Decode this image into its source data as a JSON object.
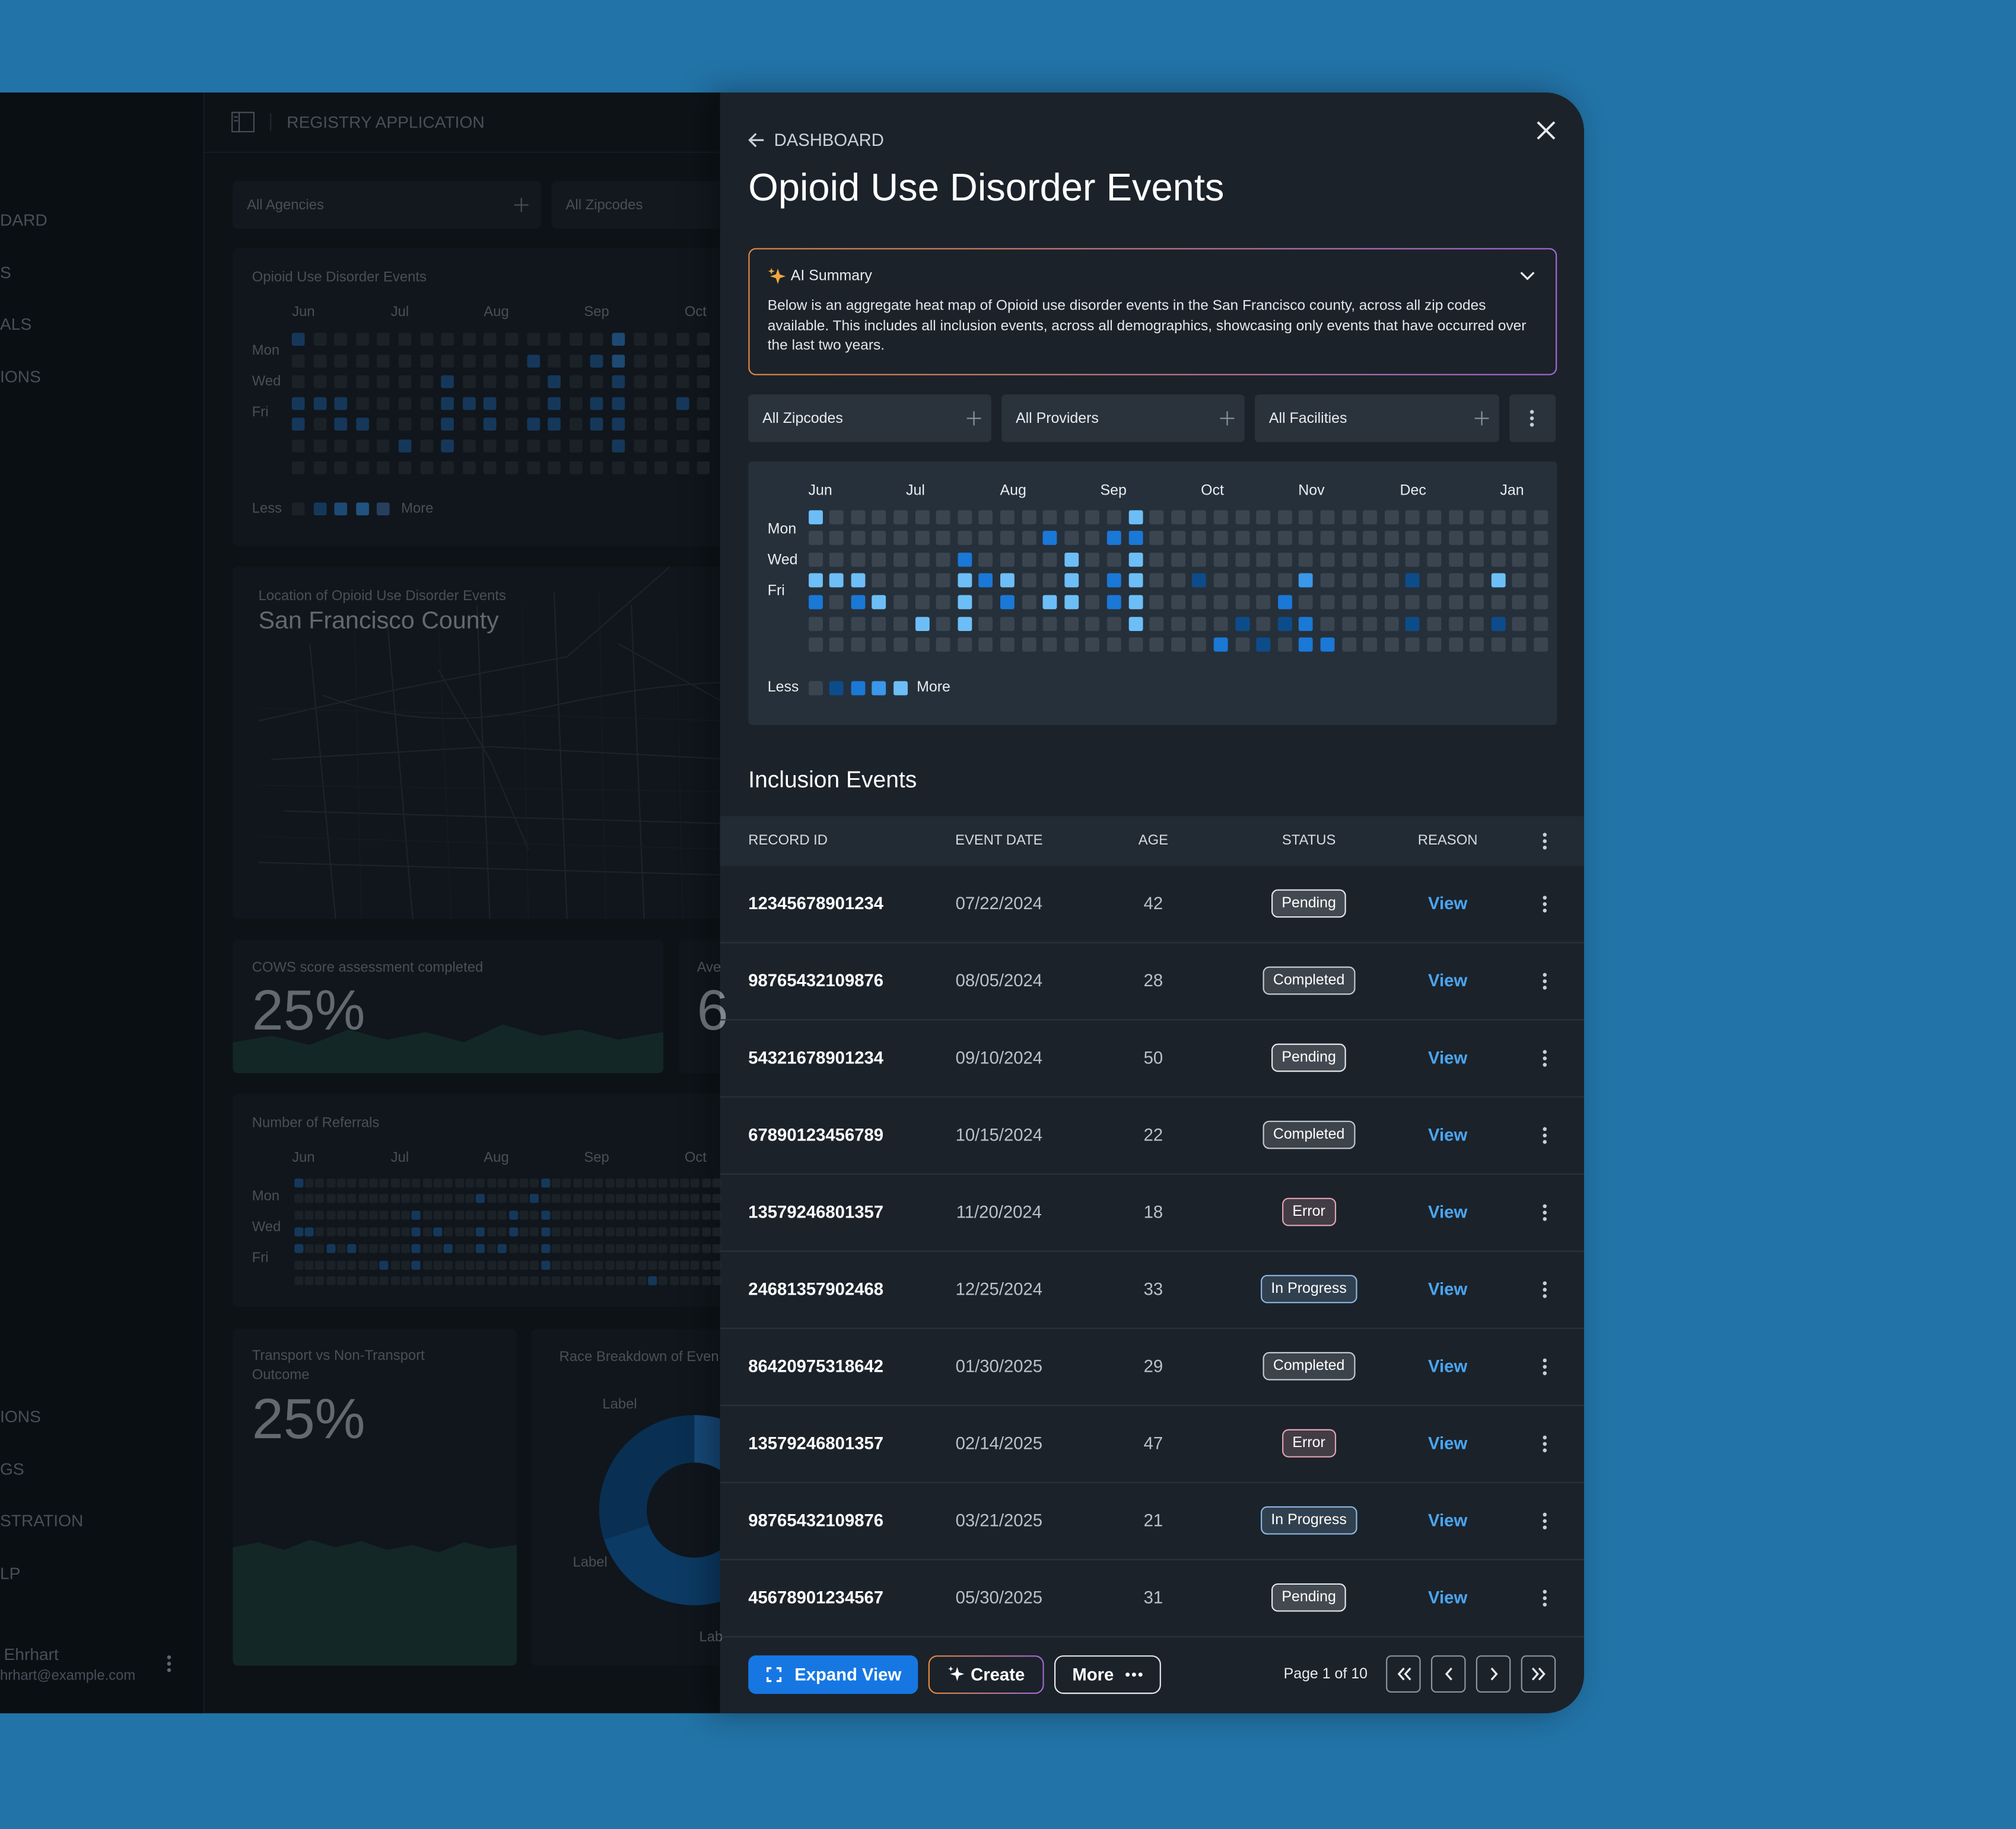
{
  "background": {
    "app_title": "REGISTRY APPLICATION",
    "nav_top": [
      "DARD",
      "S",
      "ALS",
      "IONS"
    ],
    "nav_bottom": [
      "IONS",
      "GS",
      "STRATION",
      "LP"
    ],
    "user": {
      "name": "Ehrhart",
      "email": "hrhart@example.com"
    },
    "filters": [
      "All Agencies",
      "All Zipcodes"
    ],
    "events_card": {
      "title": "Opioid Use Disorder Events",
      "months": [
        "Jun",
        "Jul",
        "Aug",
        "Sep",
        "Oct"
      ],
      "days": [
        "Mon",
        "Wed",
        "Fri"
      ],
      "legend": {
        "less": "Less",
        "more": "More"
      },
      "levels": [
        [
          1,
          0,
          0,
          0,
          0,
          0,
          0,
          0,
          0,
          0,
          0,
          0,
          0,
          0,
          0,
          2,
          0,
          0,
          0,
          0
        ],
        [
          0,
          0,
          0,
          0,
          0,
          0,
          0,
          0,
          0,
          0,
          0,
          1,
          0,
          0,
          1,
          2,
          0,
          0,
          0,
          0
        ],
        [
          0,
          0,
          0,
          0,
          0,
          0,
          0,
          1,
          0,
          0,
          0,
          0,
          1,
          0,
          0,
          1,
          0,
          0,
          0,
          0
        ],
        [
          1,
          1,
          1,
          0,
          0,
          0,
          0,
          1,
          1,
          1,
          0,
          0,
          1,
          0,
          1,
          1,
          0,
          0,
          1,
          0
        ],
        [
          1,
          0,
          1,
          1,
          0,
          0,
          0,
          1,
          0,
          1,
          0,
          1,
          1,
          0,
          1,
          1,
          0,
          0,
          0,
          0
        ],
        [
          0,
          0,
          0,
          0,
          0,
          1,
          0,
          1,
          0,
          0,
          0,
          0,
          0,
          0,
          0,
          1,
          0,
          0,
          0,
          0
        ],
        [
          0,
          0,
          0,
          0,
          0,
          0,
          0,
          0,
          0,
          0,
          0,
          0,
          0,
          0,
          0,
          0,
          0,
          0,
          0,
          0
        ]
      ]
    },
    "map_card": {
      "subtitle": "Location of Opioid Use Disorder Events",
      "title": "San Francisco County"
    },
    "cows_card": {
      "label": "COWS score assessment completed",
      "value": "25%"
    },
    "average_card": {
      "label": "Ave",
      "value": "6"
    },
    "referrals_card": {
      "title": "Number of Referrals",
      "months": [
        "Jun",
        "Jul",
        "Aug",
        "Sep",
        "Oct"
      ],
      "days": [
        "Mon",
        "Wed",
        "Fri"
      ],
      "levels": [
        [
          1,
          0,
          0,
          0,
          0,
          0,
          0,
          0,
          0,
          0,
          0,
          0,
          0,
          0,
          0,
          0,
          0,
          0,
          0,
          0,
          0,
          0,
          0,
          1,
          0,
          0,
          0,
          0,
          0,
          0,
          0,
          0,
          0,
          0,
          0,
          0,
          0,
          0,
          0,
          0
        ],
        [
          0,
          0,
          0,
          0,
          0,
          0,
          0,
          0,
          0,
          0,
          0,
          0,
          0,
          0,
          0,
          0,
          0,
          1,
          0,
          0,
          0,
          0,
          1,
          0,
          0,
          0,
          0,
          0,
          0,
          0,
          0,
          0,
          0,
          0,
          0,
          0,
          0,
          0,
          0,
          0
        ],
        [
          0,
          0,
          0,
          0,
          0,
          0,
          0,
          0,
          0,
          0,
          0,
          1,
          0,
          0,
          0,
          0,
          0,
          0,
          0,
          0,
          1,
          0,
          0,
          1,
          0,
          0,
          0,
          0,
          0,
          0,
          0,
          0,
          0,
          0,
          0,
          0,
          0,
          0,
          0,
          0
        ],
        [
          1,
          1,
          0,
          0,
          0,
          0,
          0,
          0,
          0,
          0,
          0,
          1,
          0,
          1,
          0,
          0,
          0,
          1,
          0,
          0,
          1,
          0,
          0,
          1,
          0,
          0,
          0,
          0,
          0,
          0,
          0,
          0,
          0,
          0,
          0,
          0,
          0,
          0,
          0,
          0
        ],
        [
          1,
          0,
          0,
          1,
          0,
          1,
          0,
          0,
          0,
          0,
          0,
          1,
          0,
          0,
          1,
          0,
          0,
          1,
          0,
          1,
          0,
          0,
          0,
          1,
          0,
          0,
          0,
          0,
          0,
          0,
          0,
          0,
          0,
          0,
          0,
          0,
          0,
          0,
          0,
          0
        ],
        [
          0,
          0,
          0,
          0,
          0,
          0,
          0,
          0,
          1,
          0,
          0,
          1,
          0,
          0,
          0,
          0,
          0,
          0,
          0,
          0,
          0,
          0,
          0,
          1,
          0,
          0,
          0,
          0,
          0,
          0,
          0,
          0,
          0,
          0,
          0,
          0,
          0,
          0,
          0,
          0
        ],
        [
          0,
          0,
          0,
          0,
          0,
          0,
          0,
          0,
          0,
          0,
          0,
          0,
          0,
          0,
          0,
          0,
          0,
          0,
          0,
          0,
          0,
          0,
          0,
          0,
          0,
          0,
          0,
          0,
          0,
          0,
          0,
          0,
          0,
          1,
          0,
          0,
          0,
          0,
          0,
          0
        ]
      ]
    },
    "transport_card": {
      "label": "Transport vs Non-Transport Outcome",
      "value": "25%"
    },
    "race_card": {
      "title": "Race Breakdown of Even",
      "labels": [
        "Label",
        "Label",
        "Lab"
      ],
      "values": [
        25,
        45,
        30
      ],
      "colors": [
        "#1c5f9e",
        "#0d4a80",
        "#0a3b68"
      ]
    }
  },
  "panel": {
    "back": "DASHBOARD",
    "title": "Opioid Use Disorder Events",
    "ai_summary": {
      "title": "AI Summary",
      "text": "Below is an aggregate heat map of Opioid use disorder events in the San Francisco county, across all zip codes available. This includes all inclusion events, across all demographics, showcasing only events that have occurred over the last two years."
    },
    "filters": [
      "All Zipcodes",
      "All Providers",
      "All Facilities"
    ],
    "heatmap": {
      "months": [
        "Jun",
        "Jul",
        "Aug",
        "Sep",
        "Oct",
        "Nov",
        "Dec",
        "Jan"
      ],
      "days": [
        "Mon",
        "Wed",
        "Fri"
      ],
      "legend": {
        "less": "Less",
        "more": "More"
      },
      "levels": [
        [
          4,
          0,
          0,
          0,
          0,
          0,
          0,
          0,
          0,
          0,
          0,
          0,
          0,
          0,
          0,
          4,
          0,
          0,
          0,
          0,
          0,
          0,
          0,
          0,
          0,
          0,
          0,
          0,
          0,
          0,
          0,
          0,
          0,
          0,
          0
        ],
        [
          0,
          0,
          0,
          0,
          0,
          0,
          0,
          0,
          0,
          0,
          0,
          2,
          0,
          0,
          2,
          2,
          0,
          0,
          0,
          0,
          0,
          0,
          0,
          0,
          0,
          0,
          0,
          0,
          0,
          0,
          0,
          0,
          0,
          0,
          0
        ],
        [
          0,
          0,
          0,
          0,
          0,
          0,
          0,
          2,
          0,
          0,
          0,
          0,
          4,
          0,
          0,
          4,
          0,
          0,
          0,
          0,
          0,
          0,
          0,
          0,
          0,
          0,
          0,
          0,
          0,
          0,
          0,
          0,
          0,
          0,
          0
        ],
        [
          4,
          4,
          4,
          0,
          0,
          0,
          0,
          4,
          2,
          4,
          0,
          0,
          4,
          0,
          2,
          4,
          0,
          0,
          1,
          0,
          0,
          0,
          0,
          3,
          0,
          0,
          0,
          0,
          1,
          0,
          0,
          0,
          4,
          0,
          0
        ],
        [
          2,
          0,
          2,
          4,
          0,
          0,
          0,
          4,
          0,
          2,
          0,
          4,
          4,
          0,
          2,
          4,
          0,
          0,
          0,
          0,
          0,
          0,
          2,
          0,
          0,
          0,
          0,
          0,
          0,
          0,
          0,
          0,
          0,
          0,
          0
        ],
        [
          0,
          0,
          0,
          0,
          0,
          4,
          0,
          4,
          0,
          0,
          0,
          0,
          0,
          0,
          0,
          4,
          0,
          0,
          0,
          0,
          1,
          0,
          1,
          2,
          0,
          0,
          0,
          0,
          1,
          0,
          0,
          0,
          1,
          0,
          0
        ],
        [
          0,
          0,
          0,
          0,
          0,
          0,
          0,
          0,
          0,
          0,
          0,
          0,
          0,
          0,
          0,
          0,
          0,
          0,
          0,
          2,
          0,
          1,
          0,
          2,
          2,
          0,
          0,
          0,
          0,
          0,
          0,
          0,
          0,
          0,
          0
        ]
      ]
    },
    "section_title": "Inclusion Events",
    "table": {
      "columns": [
        "RECORD ID",
        "EVENT DATE",
        "AGE",
        "STATUS",
        "REASON"
      ],
      "status_colors": {
        "Pending": "#e4e8ec",
        "Completed": "#c3cad1",
        "Error": "#e3a3b2",
        "In Progress": "#8cb8e6"
      },
      "rows": [
        [
          "12345678901234",
          "07/22/2024",
          42,
          "Pending",
          "View"
        ],
        [
          "98765432109876",
          "08/05/2024",
          28,
          "Completed",
          "View"
        ],
        [
          "54321678901234",
          "09/10/2024",
          50,
          "Pending",
          "View"
        ],
        [
          "67890123456789",
          "10/15/2024",
          22,
          "Completed",
          "View"
        ],
        [
          "13579246801357",
          "11/20/2024",
          18,
          "Error",
          "View"
        ],
        [
          "24681357902468",
          "12/25/2024",
          33,
          "In Progress",
          "View"
        ],
        [
          "86420975318642",
          "01/30/2025",
          29,
          "Completed",
          "View"
        ],
        [
          "13579246801357",
          "02/14/2025",
          47,
          "Error",
          "View"
        ],
        [
          "98765432109876",
          "03/21/2025",
          21,
          "In Progress",
          "View"
        ],
        [
          "45678901234567",
          "05/30/2025",
          31,
          "Pending",
          "View"
        ]
      ]
    },
    "footer": {
      "buttons": [
        "Expand View",
        "Create",
        "More"
      ],
      "page": "Page 1 of 10"
    }
  }
}
